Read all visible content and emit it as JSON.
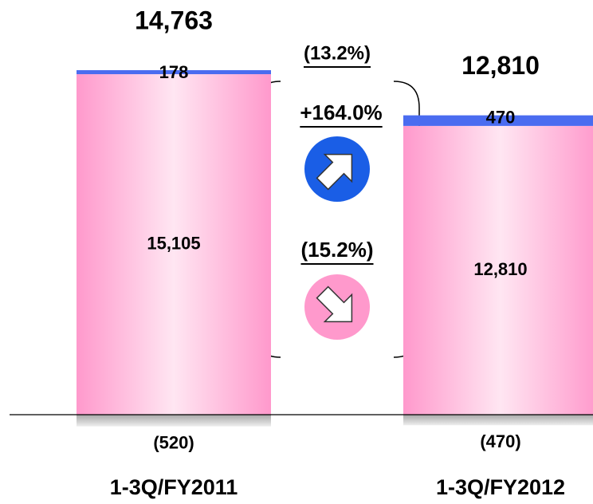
{
  "chart_data": {
    "type": "bar",
    "stacked": true,
    "categories": [
      "1-3Q/FY2011",
      "1-3Q/FY2012"
    ],
    "series": [
      {
        "color": "#ff99cc",
        "values": [
          15105,
          12810
        ],
        "value_labels": [
          "15,105",
          "12,810"
        ]
      },
      {
        "color": "#4a6cf0",
        "values": [
          178,
          470
        ]
      },
      {
        "color": "#c4c4c4",
        "values": [
          -520,
          -470
        ],
        "value_labels": [
          "(520)",
          "(470)"
        ]
      }
    ],
    "totals": [
      14763,
      12810
    ],
    "totals_labels": [
      "14,763",
      "12,810"
    ],
    "annotations": [
      "(13.2%)",
      "+164.0%",
      "(15.2%)"
    ]
  }
}
